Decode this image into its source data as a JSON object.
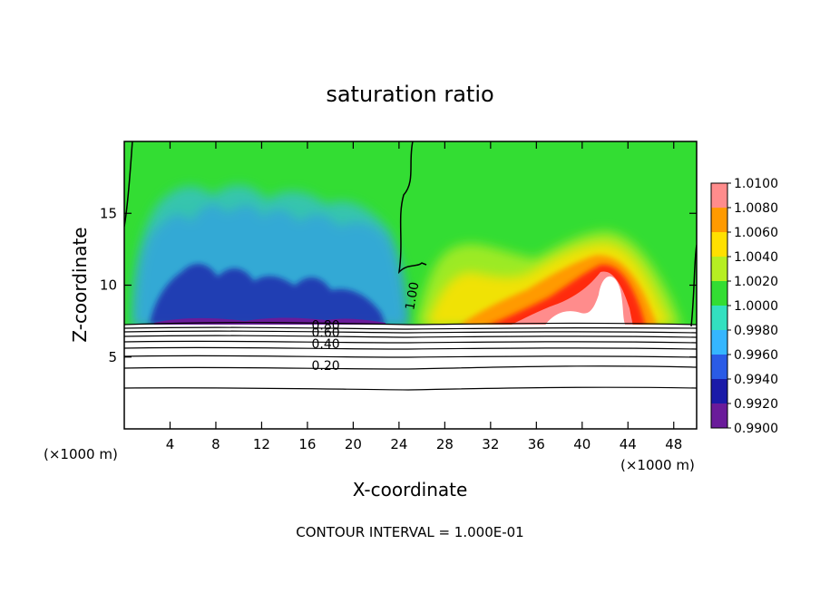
{
  "chart_data": {
    "type": "heatmap",
    "title": "saturation ratio",
    "xlabel": "X-coordinate",
    "ylabel": "Z-coordinate",
    "x_unit": "(×1000 m)",
    "y_unit": "(×1000 m)",
    "footer": "CONTOUR INTERVAL = 1.000E-01",
    "xlim": [
      0,
      50
    ],
    "ylim": [
      0,
      20
    ],
    "x_ticks": [
      4,
      8,
      12,
      16,
      20,
      24,
      28,
      32,
      36,
      40,
      44,
      48
    ],
    "y_ticks": [
      5,
      10,
      15
    ],
    "colorbar": {
      "levels": [
        "0.9900",
        "0.9920",
        "0.9940",
        "0.9960",
        "0.9980",
        "1.0000",
        "1.0020",
        "1.0040",
        "1.0060",
        "1.0080",
        "1.0100"
      ],
      "colors": [
        "#6a1b9a",
        "#1a1aa8",
        "#2a5be6",
        "#35b6ff",
        "#33e0c0",
        "#33dd33",
        "#b6ee22",
        "#ffe000",
        "#ff9a00",
        "#ff2a10",
        "#ff8c8c"
      ]
    },
    "contour_labels": [
      {
        "text": "1.00",
        "x": 25.5,
        "y": 9.2
      },
      {
        "text": "0.80",
        "x": 17.6,
        "y": 6.9
      },
      {
        "text": "0.60",
        "x": 17.6,
        "y": 6.4
      },
      {
        "text": "0.40",
        "x": 17.6,
        "y": 5.6
      },
      {
        "text": "0.20",
        "x": 17.6,
        "y": 4.1
      }
    ],
    "contour_lines_z": [
      2.9,
      4.4,
      5.0,
      5.6,
      6.0,
      6.3,
      6.6,
      6.9,
      7.1
    ],
    "field_regions": [
      {
        "name": "upper-background",
        "value": 1.0
      },
      {
        "name": "left-dry-region",
        "value": 0.994
      },
      {
        "name": "left-cyan-region",
        "value": 0.996
      },
      {
        "name": "right-moist-region",
        "value": 1.002
      },
      {
        "name": "right-plume",
        "value": 1.008
      },
      {
        "name": "plume-core",
        "value": 1.01
      }
    ]
  }
}
